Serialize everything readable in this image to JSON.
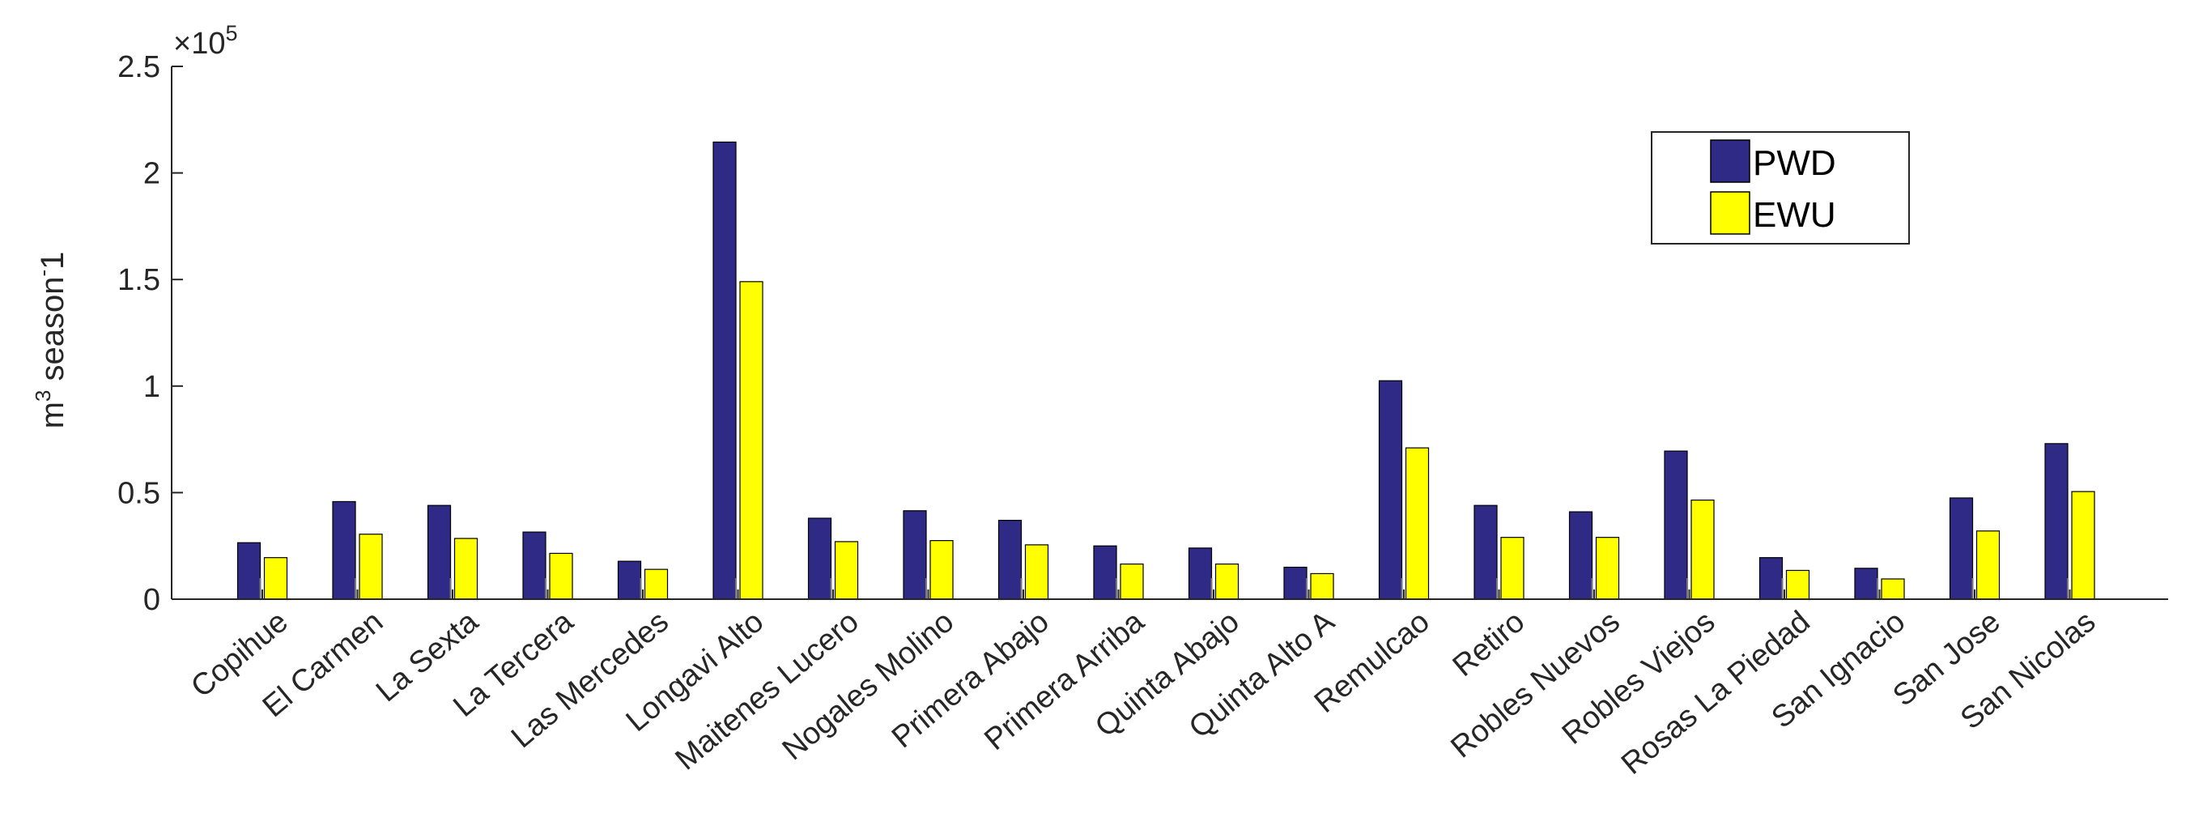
{
  "chart_data": {
    "type": "bar",
    "title": "",
    "xlabel": "",
    "ylabel": "m³ season⁻1",
    "ylabel_base": "m",
    "ylabel_sup": "3",
    "ylabel_mid": " season",
    "ylabel_sup2": "-",
    "ylabel_end": "1",
    "y_exponent_prefix": "×10",
    "y_exponent_power": "5",
    "ylim": [
      0,
      2.5
    ],
    "y_scale_factor": 100000,
    "yticks": [
      0,
      0.5,
      1,
      1.5,
      2,
      2.5
    ],
    "ytick_labels": [
      "0",
      "0.5",
      "1",
      "1.5",
      "2",
      "2.5"
    ],
    "grid": false,
    "legend_position": "top-right",
    "categories": [
      "Copihue",
      "El Carmen",
      "La Sexta",
      "La Tercera",
      "Las Mercedes",
      "Longavi Alto",
      "Maitenes Lucero",
      "Nogales Molino",
      "Primera Abajo",
      "Primera Arriba",
      "Quinta Abajo",
      "Quinta Alto A",
      "Remulcao",
      "Retiro",
      "Robles Nuevos",
      "Robles Viejos",
      "Rosas La Piedad",
      "San Ignacio",
      "San Jose",
      "San Nicolas"
    ],
    "series": [
      {
        "name": "PWD",
        "color": "#2e2a85",
        "values": [
          26500,
          45800,
          44000,
          31500,
          17800,
          214500,
          38000,
          41500,
          37000,
          25000,
          24000,
          15000,
          102500,
          44000,
          41000,
          69500,
          19500,
          14500,
          47500,
          73000
        ]
      },
      {
        "name": "EWU",
        "color": "#ffff00",
        "values": [
          19500,
          30500,
          28500,
          21500,
          14000,
          149000,
          27000,
          27500,
          25500,
          16500,
          16500,
          12000,
          71000,
          29000,
          29000,
          46500,
          13500,
          9500,
          32000,
          50500
        ]
      }
    ]
  }
}
